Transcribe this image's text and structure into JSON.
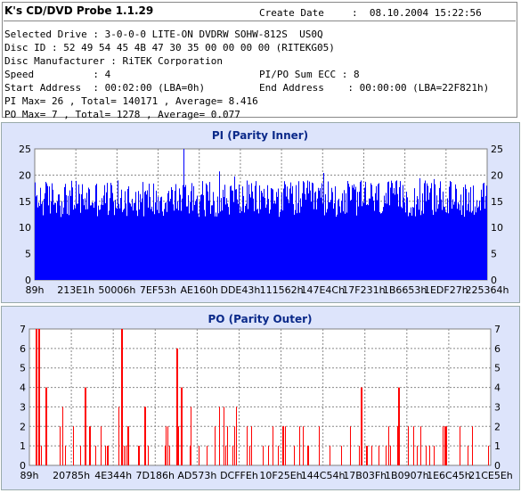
{
  "app_title": "K's CD/DVD Probe 1.1.29",
  "create_date_label": "Create Date",
  "create_date_value": ":  08.10.2004 15:22:56",
  "selected_drive": "Selected Drive : 3-0-0-0 LITE-ON DVDRW SOHW-812S  US0Q",
  "disc_id": "Disc ID : 52 49 54 45 4B 47 30 35 00 00 00 00 (RITEKG05)",
  "disc_manufacturer": "Disc Manufacturer : RiTEK Corporation",
  "speed": "Speed          : 4",
  "pipo_sum": "PI/PO Sum ECC : 8",
  "start_address": "Start Address  : 00:02:00 (LBA=0h)",
  "end_address": "End Address    : 00:00:00 (LBA=22F821h)",
  "pi_summary": "PI Max= 26 , Total= 140171 , Average= 8.416",
  "po_summary": "PO Max= 7 , Total= 1278 , Average= 0.077",
  "colors": {
    "pi_bars": "#0000ff",
    "po_bars": "#ff0000",
    "panel_bg": "#dde4fb",
    "plot_bg": "#ffffff",
    "title_text": "#0b2a8a"
  },
  "chart_data": [
    {
      "type": "bar",
      "title": "PI (Parity Inner)",
      "xlabel": "",
      "ylabel": "",
      "ylim": [
        0,
        25
      ],
      "yticks": [
        "0",
        "5",
        "10",
        "15",
        "20",
        "25"
      ],
      "xtick_labels": [
        "89h",
        "213E1h",
        "50006h",
        "7EF53h",
        "AE160h",
        "DDE43h",
        "111562h",
        "147E4Ch",
        "17F231h",
        "1B6653h",
        "1EDF27h",
        "225364h"
      ],
      "grid": true,
      "series": [
        {
          "max": 26,
          "typical_high": 19,
          "typical_low": 12
        }
      ]
    },
    {
      "type": "bar",
      "title": "PO (Parity Outer)",
      "xlabel": "",
      "ylabel": "",
      "ylim": [
        0,
        7
      ],
      "yticks": [
        "0",
        "1",
        "2",
        "3",
        "4",
        "5",
        "6",
        "7"
      ],
      "xtick_labels": [
        "89h",
        "20785h",
        "4E344h",
        "7D186h",
        "AD573h",
        "DCFFEh",
        "10F25Eh",
        "144C54h",
        "17B03Fh",
        "1B0907h",
        "1E6C45h",
        "21CE5Eh"
      ],
      "grid": true,
      "series": [
        {
          "max": 7
        }
      ]
    }
  ]
}
